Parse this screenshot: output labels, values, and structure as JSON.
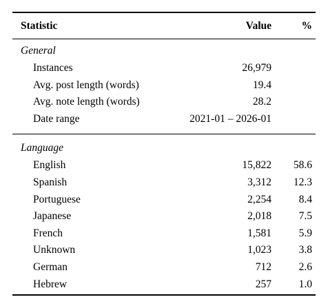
{
  "table": {
    "header": [
      "Statistic",
      "Value",
      "%"
    ],
    "sections": [
      {
        "title": "General",
        "rows": [
          [
            "Instances",
            "26,979"
          ],
          [
            "Avg. post length (words)",
            "19.4"
          ],
          [
            "Avg. note length (words)",
            "28.2"
          ],
          [
            "Date range",
            "2021-01 – 2026-01"
          ]
        ]
      },
      {
        "title": "Language",
        "rows": [
          [
            "English",
            "15,822",
            "58.6"
          ],
          [
            "Spanish",
            "3,312",
            "12.3"
          ],
          [
            "Portuguese",
            "2,254",
            "8.4"
          ],
          [
            "Japanese",
            "2,018",
            "7.5"
          ],
          [
            "French",
            "1,581",
            "5.9"
          ],
          [
            "Unknown",
            "1,023",
            "3.8"
          ],
          [
            "German",
            "712",
            "2.6"
          ],
          [
            "Hebrew",
            "257",
            "1.0"
          ]
        ]
      }
    ]
  }
}
